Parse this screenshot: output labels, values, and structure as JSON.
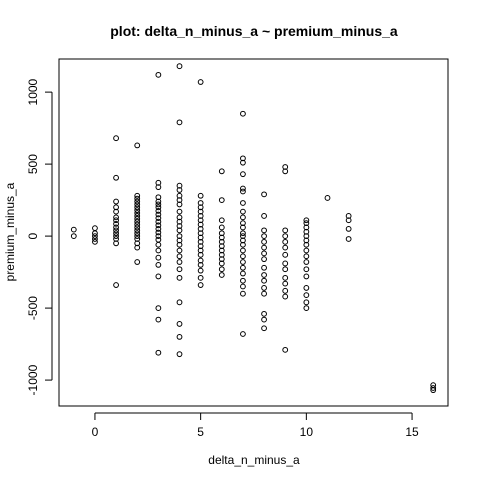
{
  "chart_data": {
    "type": "scatter",
    "title": "plot: delta_n_minus_a ~ premium_minus_a",
    "xlabel": "delta_n_minus_a",
    "ylabel": "premium_minus_a",
    "xlim": [
      -1.7,
      16.7
    ],
    "ylim": [
      -1180,
      1230
    ],
    "x_ticks": [
      0,
      5,
      10,
      15
    ],
    "y_ticks": [
      -1000,
      -500,
      0,
      500,
      1000
    ],
    "grid": false,
    "marker": "open-circle",
    "point_color": "#000000",
    "points": [
      [
        -1,
        45
      ],
      [
        -1,
        0
      ],
      [
        0,
        55
      ],
      [
        0,
        20
      ],
      [
        0,
        0
      ],
      [
        0,
        -20
      ],
      [
        0,
        -40
      ],
      [
        1,
        680
      ],
      [
        1,
        405
      ],
      [
        1,
        240
      ],
      [
        1,
        200
      ],
      [
        1,
        170
      ],
      [
        1,
        130
      ],
      [
        1,
        110
      ],
      [
        1,
        85
      ],
      [
        1,
        60
      ],
      [
        1,
        40
      ],
      [
        1,
        20
      ],
      [
        1,
        0
      ],
      [
        1,
        -20
      ],
      [
        1,
        -50
      ],
      [
        1,
        -340
      ],
      [
        2,
        630
      ],
      [
        2,
        280
      ],
      [
        2,
        260
      ],
      [
        2,
        240
      ],
      [
        2,
        220
      ],
      [
        2,
        200
      ],
      [
        2,
        180
      ],
      [
        2,
        160
      ],
      [
        2,
        140
      ],
      [
        2,
        120
      ],
      [
        2,
        100
      ],
      [
        2,
        80
      ],
      [
        2,
        60
      ],
      [
        2,
        40
      ],
      [
        2,
        20
      ],
      [
        2,
        0
      ],
      [
        2,
        -20
      ],
      [
        2,
        -50
      ],
      [
        2,
        -80
      ],
      [
        2,
        -180
      ],
      [
        3,
        1120
      ],
      [
        3,
        370
      ],
      [
        3,
        340
      ],
      [
        3,
        270
      ],
      [
        3,
        240
      ],
      [
        3,
        220
      ],
      [
        3,
        200
      ],
      [
        3,
        175
      ],
      [
        3,
        150
      ],
      [
        3,
        125
      ],
      [
        3,
        100
      ],
      [
        3,
        75
      ],
      [
        3,
        50
      ],
      [
        3,
        25
      ],
      [
        3,
        0
      ],
      [
        3,
        -25
      ],
      [
        3,
        -60
      ],
      [
        3,
        -100
      ],
      [
        3,
        -150
      ],
      [
        3,
        -200
      ],
      [
        3,
        -280
      ],
      [
        3,
        -500
      ],
      [
        3,
        -580
      ],
      [
        3,
        -810
      ],
      [
        4,
        1180
      ],
      [
        4,
        790
      ],
      [
        4,
        350
      ],
      [
        4,
        320
      ],
      [
        4,
        280
      ],
      [
        4,
        250
      ],
      [
        4,
        220
      ],
      [
        4,
        170
      ],
      [
        4,
        130
      ],
      [
        4,
        100
      ],
      [
        4,
        70
      ],
      [
        4,
        40
      ],
      [
        4,
        0
      ],
      [
        4,
        -30
      ],
      [
        4,
        -60
      ],
      [
        4,
        -100
      ],
      [
        4,
        -140
      ],
      [
        4,
        -180
      ],
      [
        4,
        -230
      ],
      [
        4,
        -290
      ],
      [
        4,
        -460
      ],
      [
        4,
        -610
      ],
      [
        4,
        -700
      ],
      [
        4,
        -820
      ],
      [
        5,
        1070
      ],
      [
        5,
        280
      ],
      [
        5,
        230
      ],
      [
        5,
        200
      ],
      [
        5,
        170
      ],
      [
        5,
        140
      ],
      [
        5,
        110
      ],
      [
        5,
        80
      ],
      [
        5,
        50
      ],
      [
        5,
        20
      ],
      [
        5,
        -10
      ],
      [
        5,
        -40
      ],
      [
        5,
        -70
      ],
      [
        5,
        -100
      ],
      [
        5,
        -130
      ],
      [
        5,
        -170
      ],
      [
        5,
        -200
      ],
      [
        5,
        -240
      ],
      [
        5,
        -290
      ],
      [
        5,
        -340
      ],
      [
        6,
        450
      ],
      [
        6,
        250
      ],
      [
        6,
        110
      ],
      [
        6,
        60
      ],
      [
        6,
        20
      ],
      [
        6,
        -10
      ],
      [
        6,
        -40
      ],
      [
        6,
        -70
      ],
      [
        6,
        -100
      ],
      [
        6,
        -130
      ],
      [
        6,
        -160
      ],
      [
        6,
        -190
      ],
      [
        6,
        -230
      ],
      [
        6,
        -270
      ],
      [
        7,
        850
      ],
      [
        7,
        540
      ],
      [
        7,
        510
      ],
      [
        7,
        430
      ],
      [
        7,
        330
      ],
      [
        7,
        310
      ],
      [
        7,
        230
      ],
      [
        7,
        170
      ],
      [
        7,
        130
      ],
      [
        7,
        90
      ],
      [
        7,
        60
      ],
      [
        7,
        20
      ],
      [
        7,
        0
      ],
      [
        7,
        -30
      ],
      [
        7,
        -60
      ],
      [
        7,
        -100
      ],
      [
        7,
        -140
      ],
      [
        7,
        -180
      ],
      [
        7,
        -220
      ],
      [
        7,
        -260
      ],
      [
        7,
        -310
      ],
      [
        7,
        -350
      ],
      [
        7,
        -400
      ],
      [
        7,
        -680
      ],
      [
        8,
        290
      ],
      [
        8,
        140
      ],
      [
        8,
        40
      ],
      [
        8,
        0
      ],
      [
        8,
        -40
      ],
      [
        8,
        -80
      ],
      [
        8,
        -120
      ],
      [
        8,
        -160
      ],
      [
        8,
        -220
      ],
      [
        8,
        -270
      ],
      [
        8,
        -310
      ],
      [
        8,
        -360
      ],
      [
        8,
        -400
      ],
      [
        8,
        -540
      ],
      [
        8,
        -580
      ],
      [
        8,
        -640
      ],
      [
        9,
        480
      ],
      [
        9,
        450
      ],
      [
        9,
        40
      ],
      [
        9,
        0
      ],
      [
        9,
        -40
      ],
      [
        9,
        -80
      ],
      [
        9,
        -130
      ],
      [
        9,
        -190
      ],
      [
        9,
        -230
      ],
      [
        9,
        -290
      ],
      [
        9,
        -330
      ],
      [
        9,
        -380
      ],
      [
        9,
        -420
      ],
      [
        9,
        -790
      ],
      [
        10,
        110
      ],
      [
        10,
        90
      ],
      [
        10,
        60
      ],
      [
        10,
        30
      ],
      [
        10,
        0
      ],
      [
        10,
        -30
      ],
      [
        10,
        -60
      ],
      [
        10,
        -100
      ],
      [
        10,
        -140
      ],
      [
        10,
        -180
      ],
      [
        10,
        -230
      ],
      [
        10,
        -280
      ],
      [
        10,
        -360
      ],
      [
        10,
        -410
      ],
      [
        10,
        -460
      ],
      [
        10,
        -500
      ],
      [
        11,
        265
      ],
      [
        12,
        140
      ],
      [
        12,
        110
      ],
      [
        12,
        50
      ],
      [
        12,
        -20
      ],
      [
        16,
        -1035
      ],
      [
        16,
        -1055
      ],
      [
        16,
        -1070
      ]
    ]
  }
}
